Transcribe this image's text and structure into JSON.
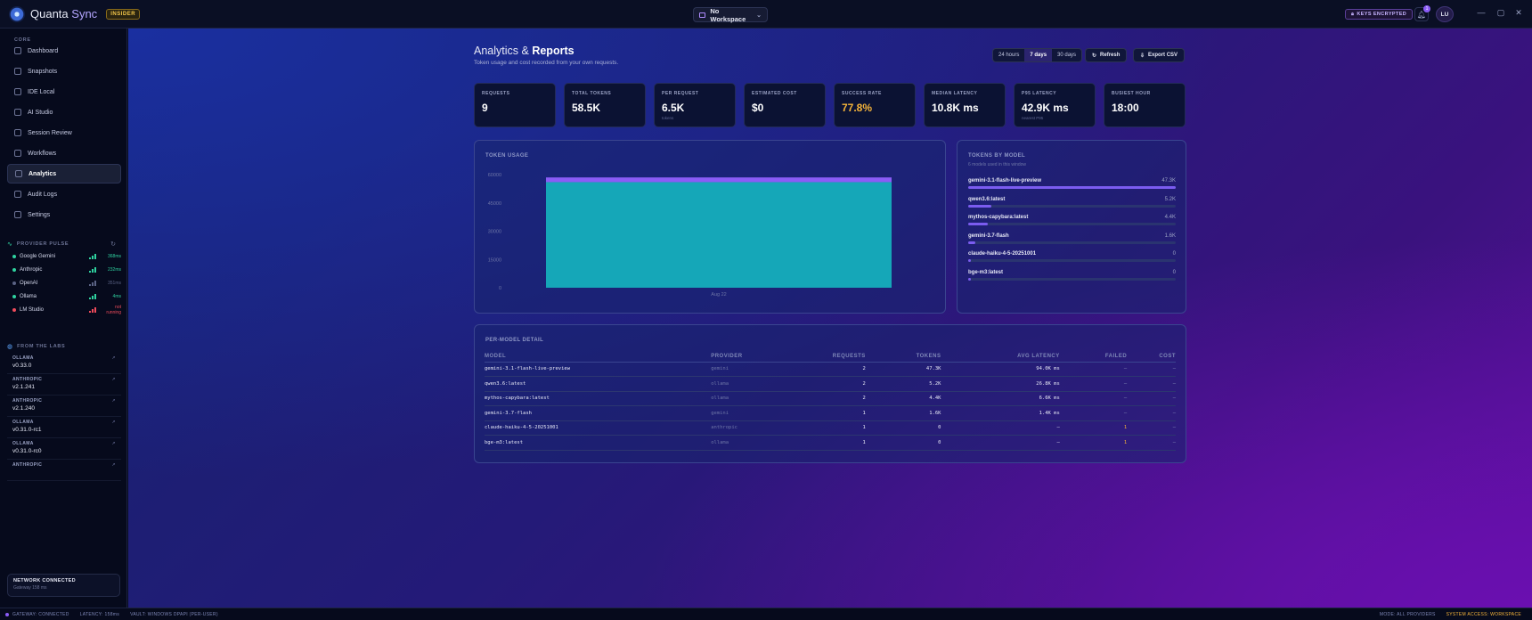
{
  "app": {
    "name_a": "Quanta",
    "name_b": "Sync",
    "badge": "INSIDER"
  },
  "workspace": {
    "label": "No Workspace"
  },
  "header_right": {
    "keys_badge": "KEYS ENCRYPTED",
    "notification_count": "1",
    "avatar_initials": "LU"
  },
  "window_controls": {
    "minimize": "—",
    "maximize": "▢",
    "close": "✕"
  },
  "sidebar": {
    "section": "CORE",
    "items": [
      {
        "label": "Dashboard",
        "icon": "dashboard-icon"
      },
      {
        "label": "Snapshots",
        "icon": "camera-icon"
      },
      {
        "label": "IDE Local",
        "icon": "code-icon"
      },
      {
        "label": "AI Studio",
        "icon": "sparkle-icon"
      },
      {
        "label": "Session Review",
        "icon": "git-branch-icon"
      },
      {
        "label": "Workflows",
        "icon": "flow-icon"
      },
      {
        "label": "Analytics",
        "icon": "chart-icon",
        "active": true
      },
      {
        "label": "Audit Logs",
        "icon": "clock-icon"
      },
      {
        "label": "Settings",
        "icon": "gear-icon"
      }
    ],
    "pulse_title": "PROVIDER PULSE",
    "providers": [
      {
        "name": "Google Gemini",
        "status_color": "#2fd3a0",
        "latency": "368ms"
      },
      {
        "name": "Anthropic",
        "status_color": "#2fd3a0",
        "latency": "232ms"
      },
      {
        "name": "OpenAI",
        "status_color": "#5b6385",
        "latency": "351ms"
      },
      {
        "name": "Ollama",
        "status_color": "#2fd3a0",
        "latency": "4ms"
      },
      {
        "name": "LM Studio",
        "status_color": "#f04b5b",
        "latency": "not running"
      }
    ],
    "labs_title": "FROM THE LABS",
    "labs": [
      {
        "source": "OLLAMA",
        "version": "v0.33.0"
      },
      {
        "source": "ANTHROPIC",
        "version": "v2.1.241"
      },
      {
        "source": "ANTHROPIC",
        "version": "v2.1.240"
      },
      {
        "source": "OLLAMA",
        "version": "v0.31.0-rc1"
      },
      {
        "source": "OLLAMA",
        "version": "v0.31.0-rc0"
      },
      {
        "source": "ANTHROPIC",
        "version": ""
      }
    ],
    "network": {
      "title": "NETWORK CONNECTED",
      "sub": "Gateway 158 ms"
    }
  },
  "page": {
    "title_a": "Analytics &",
    "title_b": "Reports",
    "subtitle": "Token usage and cost recorded from your own requests."
  },
  "range": {
    "options": [
      "24 hours",
      "7 days",
      "30 days"
    ],
    "selected": "7 days"
  },
  "actions": {
    "refresh": "Refresh",
    "export": "Export CSV"
  },
  "stats": [
    {
      "label": "REQUESTS",
      "value": "9",
      "color": "#ffffff"
    },
    {
      "label": "TOTAL TOKENS",
      "value": "58.5K",
      "color": "#ffffff"
    },
    {
      "label": "PER REQUEST",
      "value": "6.5K",
      "note": "tokens",
      "color": "#ffffff"
    },
    {
      "label": "ESTIMATED COST",
      "value": "$0",
      "color": "#ffffff"
    },
    {
      "label": "SUCCESS RATE",
      "value": "77.8%",
      "color": "#f5b43a"
    },
    {
      "label": "MEDIAN LATENCY",
      "value": "10.8K ms",
      "color": "#ffffff"
    },
    {
      "label": "P95 LATENCY",
      "value": "42.9K ms",
      "note": "nearest P95",
      "color": "#ffffff"
    },
    {
      "label": "BUSIEST HOUR",
      "value": "18:00",
      "color": "#ffffff"
    }
  ],
  "token_usage": {
    "title": "TOKEN USAGE"
  },
  "chart_data": {
    "type": "bar",
    "categories": [
      "Aug 22"
    ],
    "series": [
      {
        "values": [
          56000
        ],
        "color": "#15a7b8"
      },
      {
        "values": [
          2500
        ],
        "color": "#8b5cf6"
      }
    ],
    "yticks": [
      "60000",
      "45000",
      "30000",
      "15000",
      "0"
    ],
    "ylim": [
      0,
      60000
    ],
    "stacked": true,
    "grid": false
  },
  "tokens_by_model": {
    "title": "TOKENS BY MODEL",
    "subtitle": "6 models used in this window",
    "models": [
      {
        "name": "gemini-3.1-flash-live-preview",
        "value": "47.3K",
        "fraction": 1.0
      },
      {
        "name": "qwen3.6:latest",
        "value": "5.2K",
        "fraction": 0.11
      },
      {
        "name": "mythos-capybara:latest",
        "value": "4.4K",
        "fraction": 0.093
      },
      {
        "name": "gemini-3.7-flash",
        "value": "1.6K",
        "fraction": 0.034
      },
      {
        "name": "claude-haiku-4-5-20251001",
        "value": "0",
        "fraction": 0
      },
      {
        "name": "bge-m3:latest",
        "value": "0",
        "fraction": 0
      }
    ]
  },
  "detail": {
    "title": "PER-MODEL DETAIL",
    "columns": [
      "MODEL",
      "PROVIDER",
      "REQUESTS",
      "TOKENS",
      "AVG LATENCY",
      "FAILED",
      "COST"
    ],
    "rows": [
      [
        "gemini-3.1-flash-live-preview",
        "gemini",
        "2",
        "47.3K",
        "94.0K ms",
        "—",
        "—"
      ],
      [
        "qwen3.6:latest",
        "ollama",
        "2",
        "5.2K",
        "26.8K ms",
        "—",
        "—"
      ],
      [
        "mythos-capybara:latest",
        "ollama",
        "2",
        "4.4K",
        "6.6K ms",
        "—",
        "—"
      ],
      [
        "gemini-3.7-flash",
        "gemini",
        "1",
        "1.6K",
        "1.4K ms",
        "—",
        "—"
      ],
      [
        "claude-haiku-4-5-20251001",
        "anthropic",
        "1",
        "0",
        "—",
        "1",
        "—"
      ],
      [
        "bge-m3:latest",
        "ollama",
        "1",
        "0",
        "—",
        "1",
        "—"
      ]
    ]
  },
  "statusbar": {
    "gateway": "GATEWAY: CONNECTED",
    "latency": "LATENCY: 158ms",
    "vault": "VAULT: WINDOWS DPAPI (PER-USER)",
    "mode": "MODE: ALL PROVIDERS",
    "access": "SYSTEM ACCESS: WORKSPACE"
  }
}
